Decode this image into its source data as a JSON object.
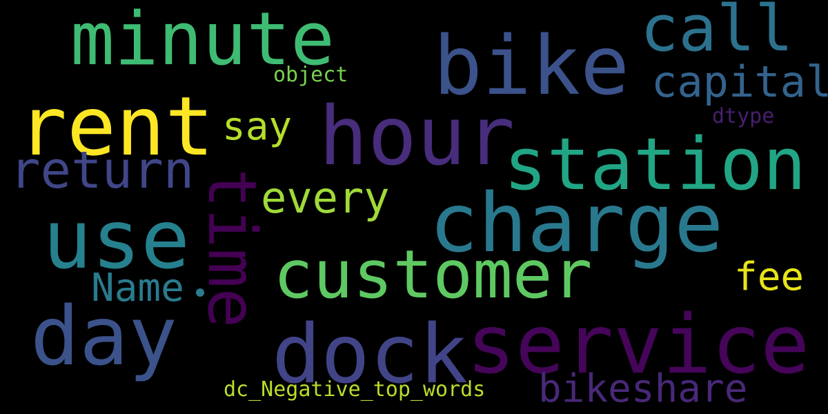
{
  "wordcloud": {
    "title": "dc_Negative_top_words",
    "words": [
      {
        "text": "minute",
        "color": "#3fbc73"
      },
      {
        "text": "bike",
        "color": "#3b528b"
      },
      {
        "text": "call",
        "color": "#2c728e"
      },
      {
        "text": "capital",
        "color": "#33638d"
      },
      {
        "text": "object",
        "color": "#7ad151"
      },
      {
        "text": "rent",
        "color": "#fde725"
      },
      {
        "text": "hour",
        "color": "#472d7b"
      },
      {
        "text": "say",
        "color": "#b5de2b"
      },
      {
        "text": "dtype",
        "color": "#481f70"
      },
      {
        "text": "station",
        "color": "#21a585"
      },
      {
        "text": "return",
        "color": "#404688"
      },
      {
        "text": "time",
        "color": "#440154"
      },
      {
        "text": "every",
        "color": "#a0da39"
      },
      {
        "text": "charge",
        "color": "#29798e"
      },
      {
        "text": "use",
        "color": "#26818e"
      },
      {
        "text": "customer",
        "color": "#5ec962"
      },
      {
        "text": "fee",
        "color": "#e7e419"
      },
      {
        "text": "Name",
        "color": "#2a7b8e"
      },
      {
        "text": "day",
        "color": "#3b528b"
      },
      {
        "text": "dock",
        "color": "#414487"
      },
      {
        "text": "service",
        "color": "#450559"
      },
      {
        "text": "bikeshare",
        "color": "#482878"
      },
      {
        "text": "dc_Negative_top_words",
        "color": "#b8de29"
      }
    ]
  }
}
